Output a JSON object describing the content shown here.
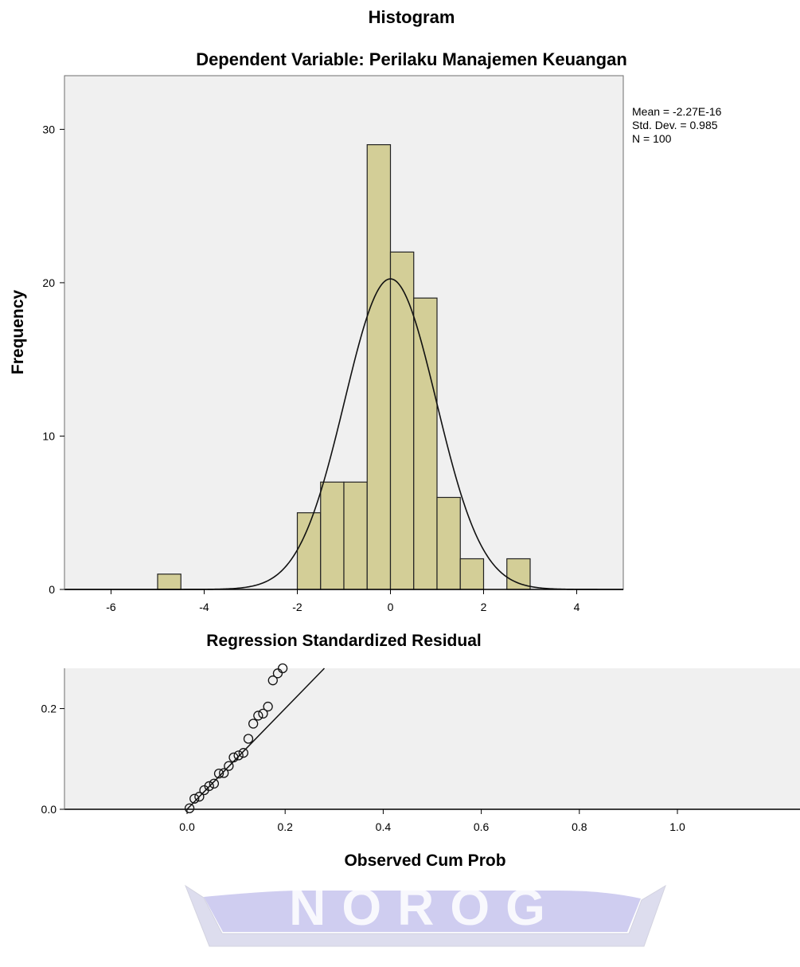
{
  "chart_data": [
    {
      "type": "bar",
      "subtype": "histogram",
      "title": "Histogram",
      "subtitle": "Dependent Variable: Perilaku Manajemen Keuangan",
      "xlabel": "Regression Standardized Residual",
      "ylabel": "Frequency",
      "xlim": [
        -7.0,
        5.0
      ],
      "ylim": [
        0,
        33.5
      ],
      "x_ticks": [
        -6,
        -4,
        -2,
        0,
        2,
        4
      ],
      "y_ticks": [
        0,
        10,
        20,
        30
      ],
      "bins": [
        {
          "x0": -5.0,
          "x1": -4.5,
          "count": 1
        },
        {
          "x0": -2.0,
          "x1": -1.5,
          "count": 5
        },
        {
          "x0": -1.5,
          "x1": -1.0,
          "count": 7
        },
        {
          "x0": -1.0,
          "x1": -0.5,
          "count": 7
        },
        {
          "x0": -0.5,
          "x1": 0.0,
          "count": 29
        },
        {
          "x0": 0.0,
          "x1": 0.5,
          "count": 22
        },
        {
          "x0": 0.5,
          "x1": 1.0,
          "count": 19
        },
        {
          "x0": 1.0,
          "x1": 1.5,
          "count": 6
        },
        {
          "x0": 1.5,
          "x1": 2.0,
          "count": 2
        },
        {
          "x0": 2.5,
          "x1": 3.0,
          "count": 2
        }
      ],
      "normal_curve": {
        "mean": -2.27e-16,
        "sd": 0.985,
        "n": 100,
        "bin_width": 0.5
      },
      "stats": [
        "Mean = -2.27E-16",
        "Std. Dev. = 0.985",
        "N = 100"
      ],
      "grid": false,
      "colors": {
        "plot_bg": "#f0f0f0",
        "bar_fill": "#d3ce97",
        "bar_stroke": "#222222",
        "curve": "#111111"
      }
    },
    {
      "type": "scatter",
      "subtype": "normal-pp-plot",
      "xlabel": "Observed Cum Prob",
      "ylabel": "",
      "xlim": [
        -0.25,
        1.25
      ],
      "ylim": [
        0.0,
        0.28
      ],
      "x_ticks": [
        "0.0",
        "0.2",
        "0.4",
        "0.6",
        "0.8",
        "1.0"
      ],
      "y_ticks": [
        "0.0",
        "0.2"
      ],
      "reference_line": {
        "from": [
          0.0,
          0.0
        ],
        "to": [
          0.28,
          0.28
        ]
      },
      "points": [
        {
          "x": 0.005,
          "y": 0.002
        },
        {
          "x": 0.015,
          "y": 0.021
        },
        {
          "x": 0.025,
          "y": 0.025
        },
        {
          "x": 0.035,
          "y": 0.038
        },
        {
          "x": 0.045,
          "y": 0.046
        },
        {
          "x": 0.055,
          "y": 0.051
        },
        {
          "x": 0.065,
          "y": 0.071
        },
        {
          "x": 0.075,
          "y": 0.072
        },
        {
          "x": 0.085,
          "y": 0.086
        },
        {
          "x": 0.095,
          "y": 0.103
        },
        {
          "x": 0.105,
          "y": 0.107
        },
        {
          "x": 0.115,
          "y": 0.112
        },
        {
          "x": 0.125,
          "y": 0.14
        },
        {
          "x": 0.135,
          "y": 0.17
        },
        {
          "x": 0.145,
          "y": 0.186
        },
        {
          "x": 0.155,
          "y": 0.19
        },
        {
          "x": 0.165,
          "y": 0.204
        },
        {
          "x": 0.175,
          "y": 0.256
        },
        {
          "x": 0.185,
          "y": 0.27
        },
        {
          "x": 0.195,
          "y": 0.28
        }
      ],
      "grid": false,
      "colors": {
        "plot_bg": "#f0f0f0",
        "marker_stroke": "#111111",
        "line": "#111111"
      }
    }
  ],
  "watermark": {
    "text": "NOROG",
    "color": "#c9c8ea"
  }
}
